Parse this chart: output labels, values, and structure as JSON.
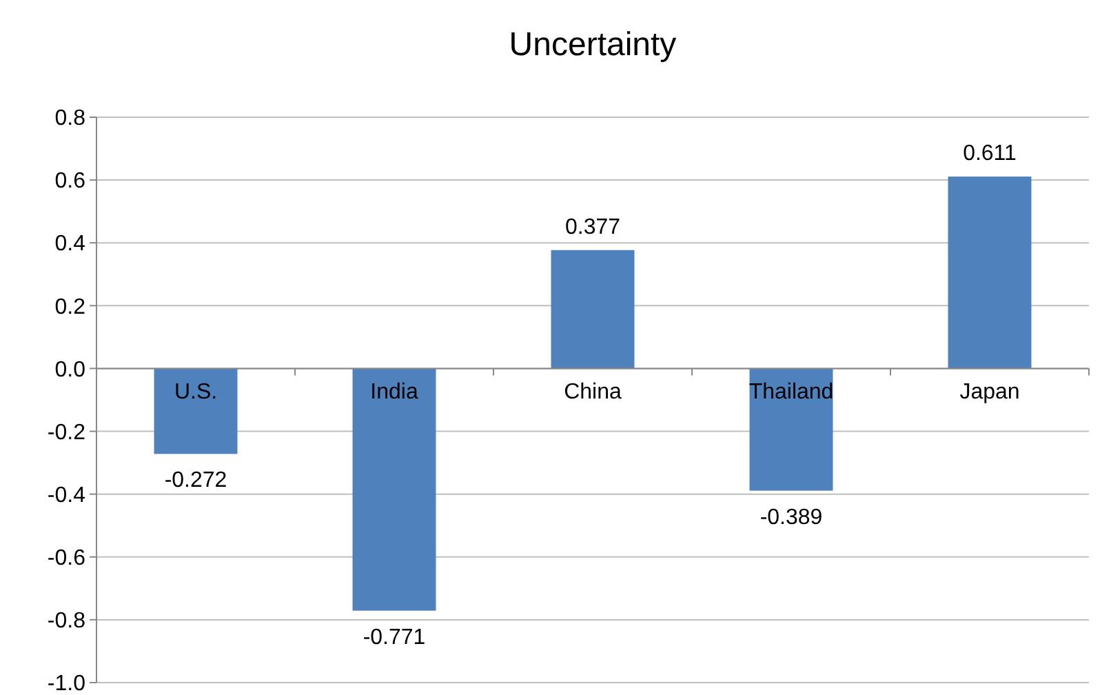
{
  "chart_data": {
    "type": "bar",
    "title": "Uncertainty",
    "categories": [
      "U.S.",
      "India",
      "China",
      "Thailand",
      "Japan"
    ],
    "values": [
      -0.272,
      -0.771,
      0.377,
      -0.389,
      0.611
    ],
    "color": "#4f81bd",
    "ylim": [
      -1.0,
      0.8
    ],
    "yticks": [
      {
        "value": -1.0,
        "label": "-1.0"
      },
      {
        "value": -0.8,
        "label": "-0.8"
      },
      {
        "value": -0.6,
        "label": "-0.6"
      },
      {
        "value": -0.4,
        "label": "-0.4"
      },
      {
        "value": -0.2,
        "label": "-0.2"
      },
      {
        "value": 0,
        "label": "0.0"
      },
      {
        "value": 0.2,
        "label": "0.2"
      },
      {
        "value": 0.4,
        "label": "0.4"
      },
      {
        "value": 0.6,
        "label": "0.6"
      },
      {
        "value": 0.8,
        "label": "0.8"
      }
    ],
    "grid": "y",
    "data_labels": true
  }
}
